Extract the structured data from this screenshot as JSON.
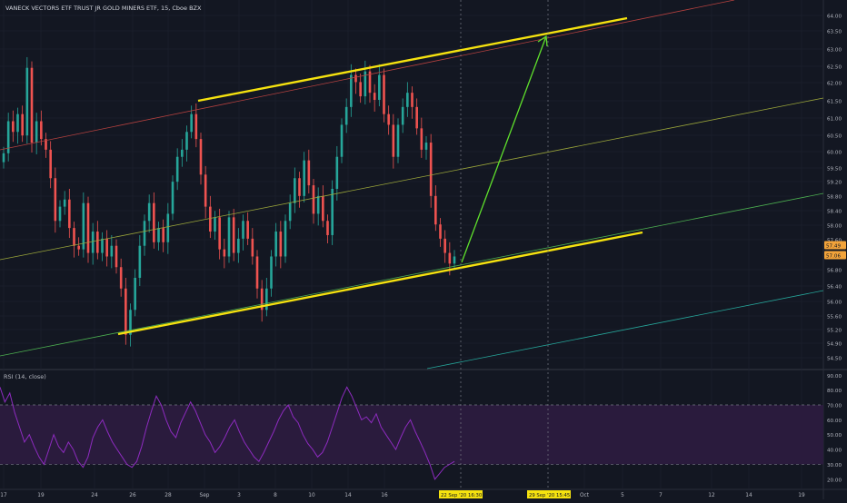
{
  "header": {
    "title": "VANECK VECTORS ETF TRUST JR GOLD MINERS ETF, 15, Cboe BZX"
  },
  "rsi_panel": {
    "title": "RSI (14, close)"
  },
  "colors": {
    "background": "#131722",
    "channel_yellow": "#f5e20f",
    "arrow_green": "#5fe02c",
    "rsi_line": "#8d2bbf",
    "rsi_band_fill": "#2a1b3d",
    "candle_up": "#26a69a",
    "candle_down": "#ef5350",
    "grid": "#1e2230",
    "axis_text": "#b2b5be",
    "date_badge": "#f5e20f",
    "price_badge": "#f2a33a"
  },
  "price_tags": [
    "57.49",
    "57.06"
  ],
  "date_badges": [
    "22 Sep '20   16:30",
    "29 Sep '20   15:45"
  ],
  "chart_data": [
    {
      "type": "candlestick",
      "title": "VANECK VECTORS ETF TRUST JR GOLD MINERS ETF, 15, Cboe BZX",
      "x_tick_labels": [
        "17",
        "19",
        "24",
        "26",
        "28",
        "Sep",
        "3",
        "8",
        "10",
        "14",
        "16",
        "Oct",
        "5",
        "7",
        "12",
        "14",
        "19"
      ],
      "y_tick_labels": [
        "64.00",
        "63.50",
        "63.00",
        "62.50",
        "62.00",
        "61.50",
        "61.00",
        "60.50",
        "60.00",
        "59.50",
        "59.20",
        "58.80",
        "58.40",
        "58.00",
        "57.60",
        "56.80",
        "56.40",
        "56.00",
        "55.60",
        "55.20",
        "54.90",
        "54.50"
      ],
      "ylim": [
        54.3,
        64.3
      ],
      "last_price": 57.06,
      "series": [
        {
          "values": [
            60.3,
            61.2,
            60.9,
            61.4,
            60.8,
            62.7,
            60.6,
            61.2,
            60.7,
            60.4,
            59.6,
            58.4,
            58.8,
            59.0,
            58.2,
            57.7,
            57.6,
            58.9,
            57.5,
            58.1,
            57.5,
            57.9,
            57.4,
            57.7,
            57.1,
            56.5,
            55.2,
            55.9,
            56.8,
            57.7,
            58.4,
            58.9,
            57.8,
            58.2,
            57.8,
            58.6,
            59.5,
            60.2,
            60.4,
            60.9,
            61.4,
            60.7,
            59.7,
            58.8,
            58.1,
            58.5,
            57.6,
            57.4,
            58.5,
            57.5,
            57.9,
            58.4,
            57.9,
            57.4,
            56.5,
            55.9,
            56.5,
            57.4,
            58.1,
            57.4,
            58.4,
            58.9,
            59.6,
            59.1,
            60.1,
            59.4,
            58.6,
            59.1,
            58.4,
            58.0,
            59.3,
            60.2,
            61.1,
            61.6,
            62.5,
            62.3,
            61.9,
            62.6,
            62.0,
            61.8,
            62.5,
            61.4,
            61.1,
            60.2,
            61.1,
            61.6,
            62.0,
            61.6,
            61.0,
            60.4,
            60.6,
            59.1,
            58.3,
            57.9,
            57.5,
            57.2,
            57.4
          ]
        }
      ],
      "channel_lines": [
        "upper channel (yellow)",
        "lower channel (yellow)",
        "median line (green)",
        "lower extension (green)"
      ],
      "annotation": "projected move arrow from lower channel to upper channel"
    },
    {
      "type": "line",
      "title": "RSI (14, close)",
      "y_tick_labels": [
        "90.00",
        "80.00",
        "70.00",
        "60.00",
        "50.00",
        "40.00",
        "30.00",
        "20.00"
      ],
      "ylim": [
        15,
        92
      ],
      "bands": [
        30,
        70
      ],
      "grid": true,
      "series": [
        {
          "values": [
            82,
            72,
            78,
            65,
            55,
            45,
            50,
            42,
            35,
            30,
            40,
            50,
            42,
            38,
            45,
            40,
            32,
            28,
            35,
            48,
            55,
            60,
            52,
            45,
            40,
            35,
            30,
            28,
            32,
            42,
            55,
            66,
            76,
            70,
            60,
            52,
            48,
            58,
            65,
            72,
            66,
            58,
            50,
            45,
            38,
            42,
            48,
            55,
            60,
            52,
            45,
            40,
            35,
            32,
            38,
            45,
            52,
            60,
            66,
            70,
            62,
            58,
            50,
            44,
            40,
            35,
            38,
            45,
            55,
            65,
            75,
            82,
            76,
            68,
            60,
            62,
            58,
            64,
            55,
            50,
            45,
            40,
            48,
            55,
            60,
            52,
            45,
            38,
            30,
            20,
            24,
            28,
            30,
            32
          ]
        }
      ]
    }
  ]
}
